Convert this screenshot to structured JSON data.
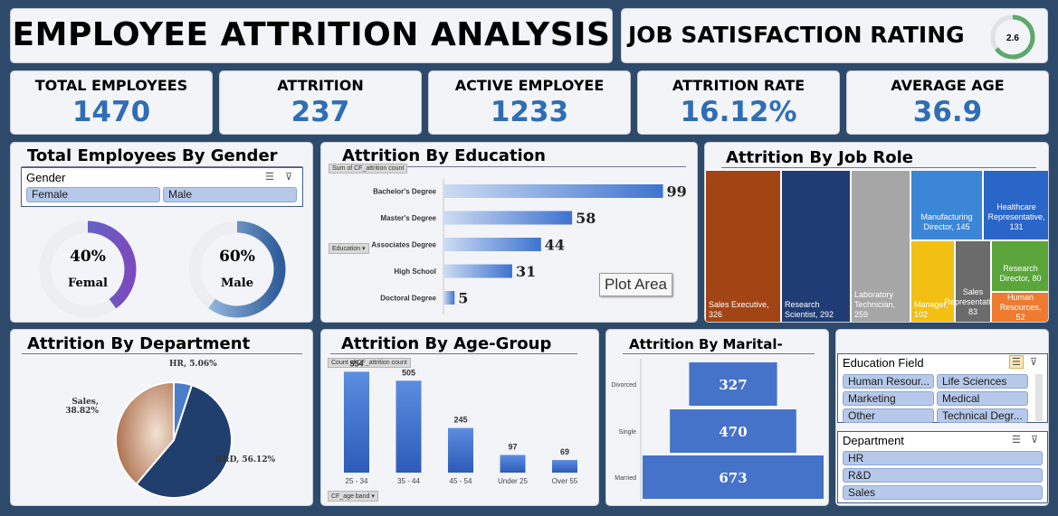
{
  "header": {
    "title": "EMPLOYEE ATTRITION ANALYSIS"
  },
  "job_satisfaction": {
    "title": "JOB SATISFACTION RATING",
    "value": 2.6,
    "value_label": "2.6",
    "max": 4
  },
  "kpis": [
    {
      "title": "TOTAL EMPLOYEES",
      "value": "1470"
    },
    {
      "title": "ATTRITION",
      "value": "237"
    },
    {
      "title": "ACTIVE EMPLOYEE",
      "value": "1233"
    },
    {
      "title": "ATTRITION RATE",
      "value": "16.12%"
    },
    {
      "title": "AVERAGE AGE",
      "value": "36.9"
    }
  ],
  "gender": {
    "title": "Total Employees By Gender",
    "slicer_header": "Gender",
    "options": [
      "Female",
      "Male"
    ],
    "rings": [
      {
        "pct": 40,
        "pct_label": "40%",
        "label": "Femal",
        "color_a": "#4c79c9",
        "color_b": "#7b4bbd"
      },
      {
        "pct": 60,
        "pct_label": "60%",
        "label": "Male",
        "color_a": "#a9c8ec",
        "color_b": "#2f5d99"
      }
    ]
  },
  "chart_data": [
    {
      "type": "bar",
      "title": "Attrition By Education",
      "tag": "Sum of CF_attrition count",
      "filter_tag": "Education",
      "categories": [
        "Bachelor's Degree",
        "Master's Degree",
        "Associates Degree",
        "High School",
        "Doctoral Degree"
      ],
      "values": [
        99,
        58,
        44,
        31,
        5
      ],
      "tooltip": "Plot Area",
      "xlim": [
        0,
        100
      ]
    },
    {
      "type": "treemap",
      "title": "Attrition By Job Role",
      "items": [
        {
          "label": "Sales Executive, 326",
          "value": 326,
          "color": "#a34415"
        },
        {
          "label": "Research Scientist, 292",
          "value": 292,
          "color": "#1f3c74"
        },
        {
          "label": "Laboratory Technician, 259",
          "value": 259,
          "color": "#a6a6a6"
        },
        {
          "label": "Manufacturing Director, 145",
          "value": 145,
          "color": "#3b86d6"
        },
        {
          "label": "Healthcare Representative, 131",
          "value": 131,
          "color": "#2a66c8"
        },
        {
          "label": "Manager, 102",
          "value": 102,
          "color": "#f2c012"
        },
        {
          "label": "Sales Representative, 83",
          "value": 83,
          "color": "#6b6b6b"
        },
        {
          "label": "Research Director, 80",
          "value": 80,
          "color": "#5aa63a"
        },
        {
          "label": "Human Resources, 52",
          "value": 52,
          "color": "#ee7b30"
        }
      ]
    },
    {
      "type": "pie",
      "title": "Attrition By Department",
      "slices": [
        {
          "name": "HR",
          "value": 5.06,
          "label": "HR, 5.06%",
          "color": "#4a7dcc"
        },
        {
          "name": "R&D",
          "value": 56.12,
          "label": "R&D, 56.12%",
          "color": "#203f6e"
        },
        {
          "name": "Sales",
          "value": 38.82,
          "label": "Sales, 38.82%",
          "color": "#b9815f"
        }
      ]
    },
    {
      "type": "bar",
      "title": "Attrition By Age-Group",
      "tag": "Count of CF_attrition count",
      "filter_tag": "CF_age band",
      "categories": [
        "25 - 34",
        "35 - 44",
        "45 - 54",
        "Under 25",
        "Over 55"
      ],
      "values": [
        554,
        505,
        245,
        97,
        69
      ],
      "ylim": [
        0,
        600
      ]
    },
    {
      "type": "bar",
      "title": "Attrition By Marital-",
      "categories": [
        "Divorced",
        "Single",
        "Married"
      ],
      "values": [
        327,
        470,
        673
      ],
      "xlim": [
        0,
        673
      ]
    }
  ],
  "slicers": {
    "education_field": {
      "header": "Education Field",
      "options": [
        "Human Resour...",
        "Life Sciences",
        "Marketing",
        "Medical",
        "Other",
        "Technical Degr..."
      ]
    },
    "department": {
      "header": "Department",
      "options": [
        "HR",
        "R&D",
        "Sales"
      ]
    }
  },
  "colors": {
    "kpi_value": "#2f6eb5",
    "background": "#2e4a6b",
    "bar": "#4a7fd4"
  }
}
